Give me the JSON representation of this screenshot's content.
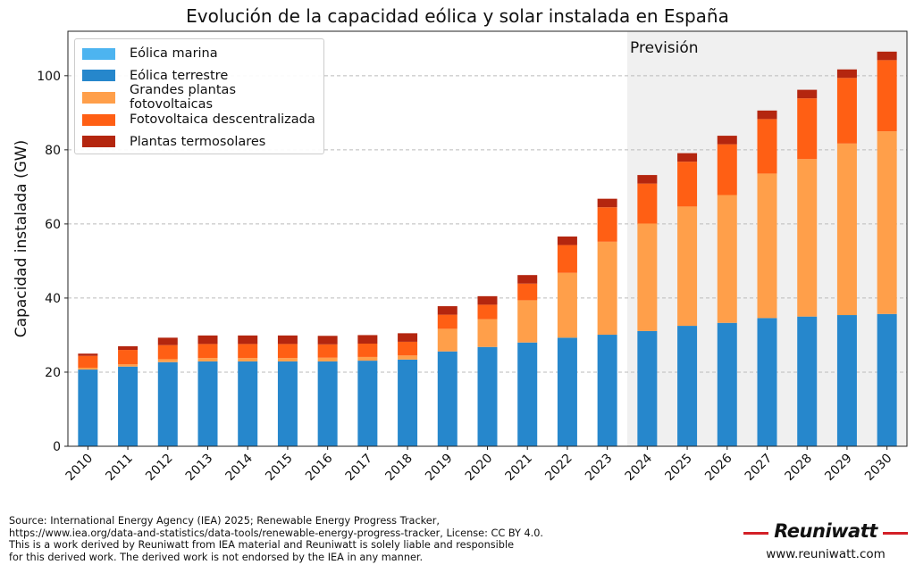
{
  "colors": {
    "offshore": "#4db4f0",
    "onshore": "#2687cc",
    "utility_pv": "#ff9f4a",
    "distributed_pv": "#ff5f14",
    "csp": "#b4260f",
    "forecast_bg": "#f0f0f0",
    "brand_red": "#d32027"
  },
  "chart_data": {
    "type": "bar",
    "stacked": true,
    "title": "Evolución de la capacidad eólica y solar instalada en España",
    "xlabel": "",
    "ylabel": "Capacidad instalada (GW)",
    "ylim": [
      0,
      112
    ],
    "yticks": [
      0,
      20,
      40,
      60,
      80,
      100
    ],
    "grid": "horizontal dashed",
    "legend_position": "top-left",
    "forecast_label": "Previsión",
    "forecast_start": "2024",
    "categories": [
      "2010",
      "2011",
      "2012",
      "2013",
      "2014",
      "2015",
      "2016",
      "2017",
      "2018",
      "2019",
      "2020",
      "2021",
      "2022",
      "2023",
      "2024",
      "2025",
      "2026",
      "2027",
      "2028",
      "2029",
      "2030"
    ],
    "series": [
      {
        "name": "Eólica marina",
        "color_key": "offshore",
        "values": [
          0,
          0,
          0,
          0,
          0,
          0,
          0,
          0,
          0,
          0,
          0,
          0,
          0,
          0,
          0,
          0,
          0,
          0,
          0,
          0,
          0
        ]
      },
      {
        "name": "Eólica terrestre",
        "color_key": "onshore",
        "values": [
          20.7,
          21.5,
          22.7,
          22.9,
          22.9,
          22.9,
          22.9,
          23.1,
          23.4,
          25.6,
          26.8,
          28.0,
          29.3,
          30.1,
          31.1,
          32.5,
          33.3,
          34.6,
          35.0,
          35.4,
          35.7
        ]
      },
      {
        "name": "Grandes plantas fotovoltaicas",
        "color_key": "utility_pv",
        "values": [
          0.5,
          0.6,
          0.8,
          0.9,
          0.9,
          0.9,
          1.0,
          1.0,
          1.1,
          6.1,
          7.5,
          11.4,
          17.5,
          25.1,
          29.0,
          32.2,
          34.5,
          39.0,
          42.5,
          46.3,
          49.3
        ]
      },
      {
        "name": "Fotovoltaica descentralizada",
        "color_key": "distributed_pv",
        "values": [
          3.2,
          3.9,
          3.8,
          3.8,
          3.8,
          3.8,
          3.6,
          3.6,
          3.7,
          3.8,
          3.9,
          4.5,
          7.5,
          9.3,
          10.8,
          12.1,
          13.7,
          14.7,
          16.4,
          17.7,
          19.2
        ]
      },
      {
        "name": "Plantas termosolares",
        "color_key": "csp",
        "values": [
          0.6,
          1.0,
          2.0,
          2.3,
          2.3,
          2.3,
          2.3,
          2.3,
          2.3,
          2.3,
          2.3,
          2.3,
          2.3,
          2.3,
          2.3,
          2.3,
          2.3,
          2.3,
          2.3,
          2.3,
          2.3
        ]
      }
    ]
  },
  "source_text": {
    "line1": "Source: International Energy Agency (IEA) 2025; Renewable Energy Progress Tracker,",
    "line2": "https://www.iea.org/data-and-statistics/data-tools/renewable-energy-progress-tracker, License: CC BY 4.0.",
    "line3": "This is a work derived by Reuniwatt from IEA material and Reuniwatt is solely liable and responsible",
    "line4": "for this derived work. The derived work is not endorsed by the IEA in any manner."
  },
  "brand": {
    "name": "Reuniwatt",
    "url": "www.reuniwatt.com"
  }
}
